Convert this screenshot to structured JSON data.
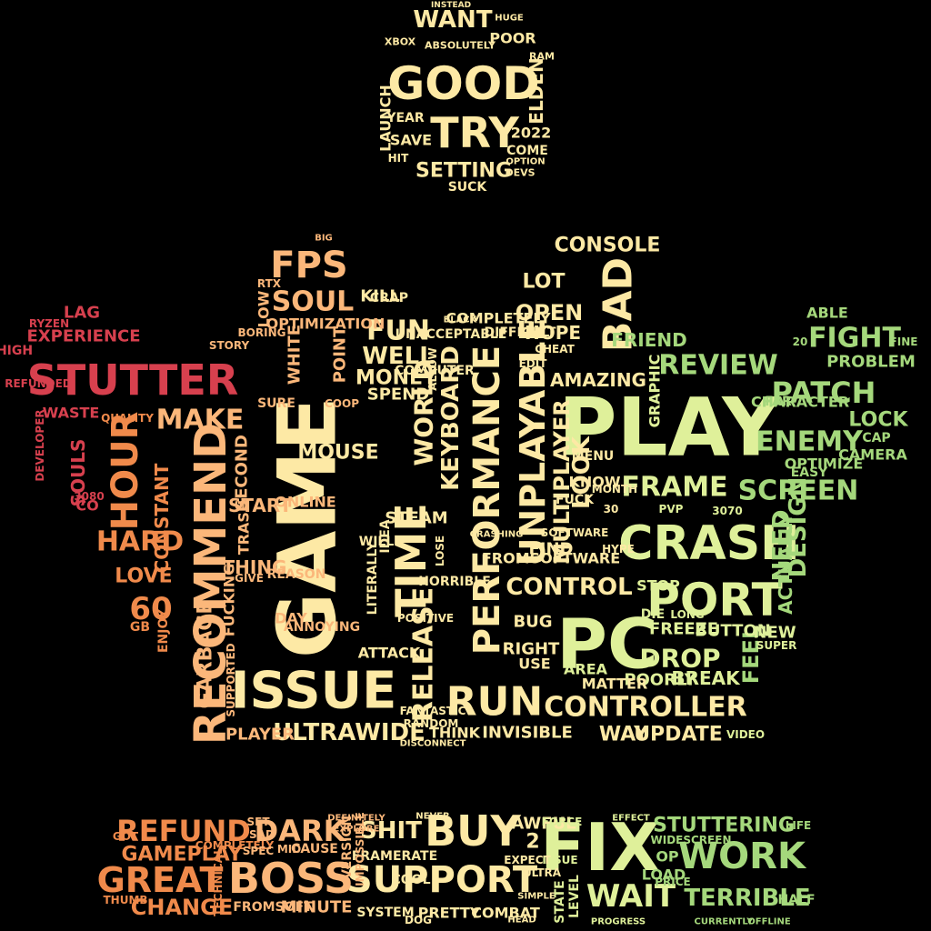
{
  "canvas": {
    "background": "#000000"
  },
  "palette": {
    "red": "#d7404e",
    "orange": "#f08a4b",
    "peach": "#fbb77a",
    "cream": "#fde9a5",
    "lime": "#dff09a",
    "green": "#a5d87c",
    "deep_green": "#5fb567"
  },
  "words": {
    "circle": [
      "WANT",
      "GOOD",
      "TRY",
      "SETTING",
      "SUCK",
      "POOR",
      "ELDEN",
      "LAUNCH",
      "SAVE",
      "YEAR",
      "2022",
      "COME",
      "HIT",
      "XBOX",
      "ABSOLUTELY",
      "RAM",
      "HUGE",
      "INSTEAD",
      "OPTION",
      "DEVS"
    ],
    "crown": [
      "GAME",
      "PLAY",
      "PC",
      "ISSUE",
      "RECOMMEND",
      "STUTTER",
      "CRASH",
      "PORT",
      "TIME",
      "PERFORMANCE",
      "BAD",
      "HOUR",
      "RUN",
      "FPS",
      "SOUL",
      "FUN",
      "UNPLAYABLE",
      "RELEASE",
      "CONTROLLER",
      "ULTRAWIDE",
      "HARD",
      "MAKE",
      "LOVE",
      "60",
      "MOUSE",
      "WORLD",
      "KEYBOARD",
      "MULTIPLAYER",
      "LOOK",
      "CONTROL",
      "FRAME",
      "SCREEN",
      "REVIEW",
      "PATCH",
      "FIGHT",
      "ENEMY",
      "DROP",
      "OPEN",
      "LOT",
      "CONSOLE",
      "UPDATE",
      "WAY",
      "INVISIBLE",
      "THINK",
      "PLAYER",
      "GARBAGE",
      "THING",
      "START",
      "ONLINE",
      "OPTIMIZATION",
      "KILL",
      "EXPERIENCE",
      "LAG",
      "SOULS",
      "WASTE",
      "MONEY",
      "SPEND",
      "WELL",
      "PROBLEM",
      "LOCK",
      "NEED",
      "DESIGN",
      "FEEL",
      "FRIEND",
      "AMAZING",
      "HOPE",
      "BUG",
      "STEAM",
      "CONSTANT",
      "SECOND",
      "FUCKING",
      "TRASH",
      "REASON",
      "DAY",
      "REFUNDED",
      "HIGH",
      "RYZEN",
      "DEVELOPER",
      "ACTUALLY",
      "CHARACTER",
      "FAR",
      "BREAK",
      "POORLY",
      "MATTER",
      "AREA",
      "RIGHT",
      "USE",
      "ATTACK",
      "FIND",
      "FREEZE",
      "BUTTON",
      "NEW",
      "STOP",
      "WHITE",
      "POINT",
      "LOW",
      "RTX",
      "BORING",
      "STORY",
      "IDEA",
      "WILL",
      "ABLE",
      "FINE",
      "CAMERA",
      "GRAPHIC",
      "MENU",
      "KNOW",
      "FUCK",
      "CAP",
      "OPTIMIZE",
      "EASY",
      "VIDEO",
      "SUPER",
      "LITERALLY",
      "HORRIBLE",
      "POSITIVE",
      "ANNOYING",
      "CRAP",
      "ENJOY",
      "GB",
      "3080",
      "CO",
      "QUALITY",
      "SUPPORTED",
      "COMPLETELY",
      "DIFFICULT",
      "CHEAT",
      "EDIT",
      "ALLOW",
      "COMPUTER",
      "DIE",
      "LONG",
      "HYPE",
      "MONTH",
      "SOFTWARE",
      "PVP",
      "30",
      "3070",
      "UNACCEPTABLE",
      "BLACK",
      "LOSE",
      "CRASHING",
      "DISCONNECT",
      "FANTASTIC",
      "RANDOM",
      "GIVE",
      "SURE",
      "COOP",
      "BIG",
      "FROMSOFTWARE",
      "20",
      "ELDENRING",
      "WAIT",
      "MASSIVE"
    ],
    "base": [
      "FIX",
      "BUY",
      "SUPPORT",
      "BOSS",
      "REFUND",
      "DARK",
      "GAMEPLAY",
      "GREAT",
      "CHANGE",
      "WORK",
      "WAIT",
      "TERRIBLE",
      "STUTTERING",
      "AWFUL",
      "SHIT",
      "FRAMERATE",
      "MINUTE",
      "FROMSOFT",
      "SYSTEM",
      "PRETTY",
      "COMBAT",
      "2",
      "TECHNICAL",
      "COMPLETELY",
      "CAUSE",
      "DEFINITELY",
      "EXPLORE",
      "LOAD",
      "OP",
      "PRICE",
      "FORCE",
      "GOT",
      "THUMB",
      "DOG",
      "COOL",
      "SPEC",
      "LEVEL",
      "STATE",
      "ISSUE",
      "HALF",
      "LIFE",
      "CURRENTLY",
      "OFFLINE",
      "PROGRESS",
      "ULTRA",
      "VERSION",
      "IMPOSSIBLE",
      "EXPECT",
      "SET",
      "SAD",
      "MID",
      "NEVER",
      "EFFECT",
      "WIDESCREEN",
      "HEAD",
      "SIMPLE"
    ]
  }
}
